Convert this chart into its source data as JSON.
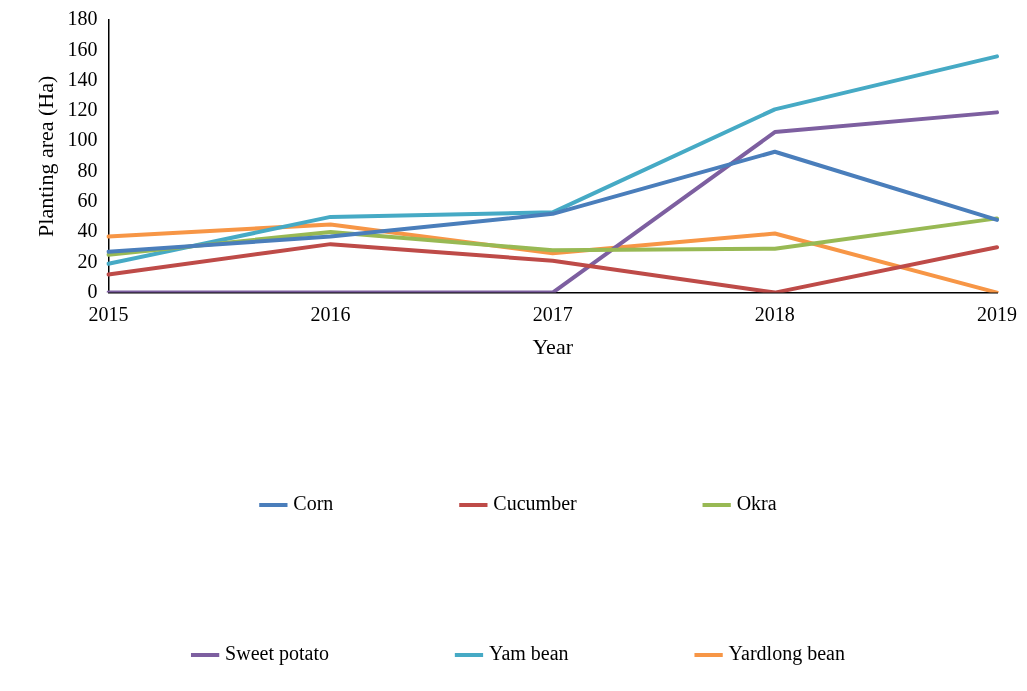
{
  "chart_data": {
    "type": "line",
    "xlabel": "Year",
    "ylabel": "Planting area (Ha)",
    "categories": [
      "2015",
      "2016",
      "2017",
      "2018",
      "2019"
    ],
    "series": [
      {
        "name": "Corn",
        "color": "#4a7ebb",
        "values": [
          27,
          37,
          52,
          93,
          48
        ]
      },
      {
        "name": "Cucumber",
        "color": "#be4b48",
        "values": [
          12,
          32,
          21,
          0,
          30
        ]
      },
      {
        "name": "Okra",
        "color": "#98b954",
        "values": [
          25,
          40,
          28,
          29,
          49
        ]
      },
      {
        "name": "Sweet potato",
        "color": "#7d5fa0",
        "values": [
          0,
          0,
          0,
          106,
          119
        ]
      },
      {
        "name": "Yam bean",
        "color": "#46aac5",
        "values": [
          19,
          50,
          53,
          121,
          156
        ]
      },
      {
        "name": "Yardlong bean",
        "color": "#f79646",
        "values": [
          37,
          45,
          26,
          39,
          0
        ]
      }
    ],
    "ylim": [
      0,
      180
    ],
    "yticks": [
      0,
      20,
      40,
      60,
      80,
      100,
      120,
      140,
      160,
      180
    ],
    "grid": false,
    "legend": "bottom",
    "marker": "none",
    "line_style": "solid"
  }
}
